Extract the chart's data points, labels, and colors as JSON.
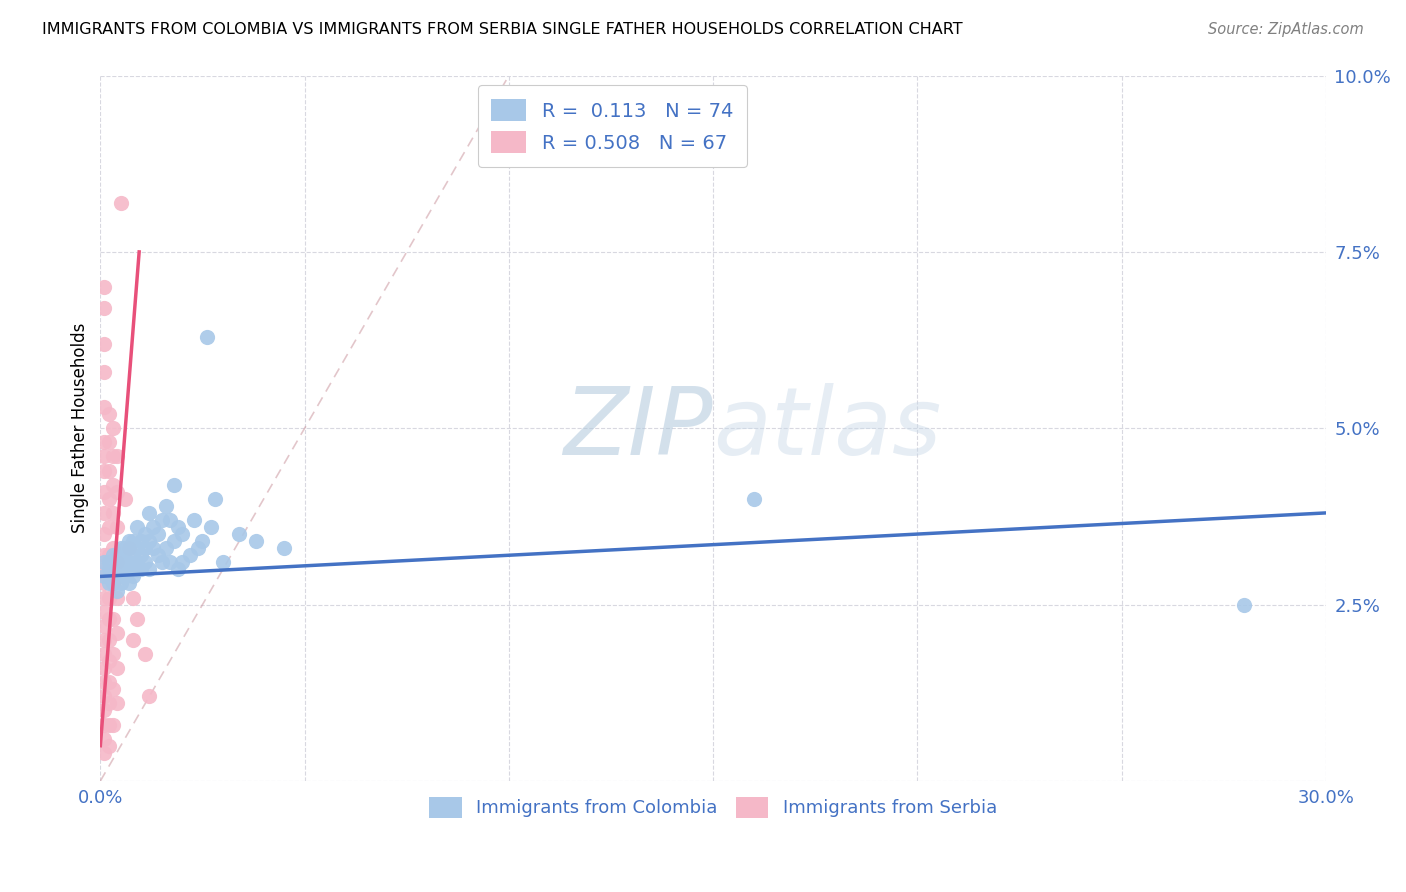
{
  "title": "IMMIGRANTS FROM COLOMBIA VS IMMIGRANTS FROM SERBIA SINGLE FATHER HOUSEHOLDS CORRELATION CHART",
  "source": "Source: ZipAtlas.com",
  "ylabel": "Single Father Households",
  "x_min": 0.0,
  "x_max": 0.3,
  "y_min": 0.0,
  "y_max": 0.1,
  "x_tick_positions": [
    0.0,
    0.05,
    0.1,
    0.15,
    0.2,
    0.25,
    0.3
  ],
  "x_tick_labels": [
    "0.0%",
    "",
    "",
    "",
    "",
    "",
    "30.0%"
  ],
  "y_tick_positions": [
    0.0,
    0.025,
    0.05,
    0.075,
    0.1
  ],
  "y_tick_labels": [
    "",
    "2.5%",
    "5.0%",
    "7.5%",
    "10.0%"
  ],
  "colombia_R": 0.113,
  "colombia_N": 74,
  "serbia_R": 0.508,
  "serbia_N": 67,
  "colombia_color": "#a8c8e8",
  "serbia_color": "#f5b8c8",
  "colombia_line_color": "#4472c4",
  "serbia_line_color": "#e8507a",
  "diagonal_color": "#d0a0a8",
  "legend_color_blue": "#4472c4",
  "colombia_points": [
    [
      0.001,
      0.031
    ],
    [
      0.001,
      0.029
    ],
    [
      0.002,
      0.031
    ],
    [
      0.002,
      0.028
    ],
    [
      0.002,
      0.03
    ],
    [
      0.003,
      0.03
    ],
    [
      0.003,
      0.032
    ],
    [
      0.003,
      0.028
    ],
    [
      0.003,
      0.031
    ],
    [
      0.004,
      0.03
    ],
    [
      0.004,
      0.029
    ],
    [
      0.004,
      0.032
    ],
    [
      0.004,
      0.027
    ],
    [
      0.005,
      0.031
    ],
    [
      0.005,
      0.028
    ],
    [
      0.005,
      0.033
    ],
    [
      0.005,
      0.03
    ],
    [
      0.005,
      0.029
    ],
    [
      0.005,
      0.032
    ],
    [
      0.006,
      0.031
    ],
    [
      0.006,
      0.033
    ],
    [
      0.006,
      0.029
    ],
    [
      0.006,
      0.03
    ],
    [
      0.007,
      0.033
    ],
    [
      0.007,
      0.031
    ],
    [
      0.007,
      0.034
    ],
    [
      0.007,
      0.028
    ],
    [
      0.007,
      0.03
    ],
    [
      0.008,
      0.032
    ],
    [
      0.008,
      0.03
    ],
    [
      0.008,
      0.034
    ],
    [
      0.008,
      0.029
    ],
    [
      0.009,
      0.033
    ],
    [
      0.009,
      0.031
    ],
    [
      0.009,
      0.036
    ],
    [
      0.009,
      0.03
    ],
    [
      0.01,
      0.032
    ],
    [
      0.01,
      0.034
    ],
    [
      0.01,
      0.03
    ],
    [
      0.011,
      0.035
    ],
    [
      0.011,
      0.033
    ],
    [
      0.011,
      0.031
    ],
    [
      0.012,
      0.038
    ],
    [
      0.012,
      0.034
    ],
    [
      0.012,
      0.03
    ],
    [
      0.013,
      0.036
    ],
    [
      0.013,
      0.033
    ],
    [
      0.014,
      0.032
    ],
    [
      0.014,
      0.035
    ],
    [
      0.015,
      0.037
    ],
    [
      0.015,
      0.031
    ],
    [
      0.016,
      0.039
    ],
    [
      0.016,
      0.033
    ],
    [
      0.017,
      0.037
    ],
    [
      0.017,
      0.031
    ],
    [
      0.018,
      0.042
    ],
    [
      0.018,
      0.034
    ],
    [
      0.019,
      0.036
    ],
    [
      0.019,
      0.03
    ],
    [
      0.02,
      0.035
    ],
    [
      0.02,
      0.031
    ],
    [
      0.022,
      0.032
    ],
    [
      0.023,
      0.037
    ],
    [
      0.024,
      0.033
    ],
    [
      0.025,
      0.034
    ],
    [
      0.026,
      0.063
    ],
    [
      0.027,
      0.036
    ],
    [
      0.028,
      0.04
    ],
    [
      0.03,
      0.031
    ],
    [
      0.034,
      0.035
    ],
    [
      0.038,
      0.034
    ],
    [
      0.045,
      0.033
    ],
    [
      0.16,
      0.04
    ],
    [
      0.28,
      0.025
    ]
  ],
  "serbia_points": [
    [
      0.001,
      0.07
    ],
    [
      0.001,
      0.067
    ],
    [
      0.001,
      0.062
    ],
    [
      0.001,
      0.058
    ],
    [
      0.001,
      0.053
    ],
    [
      0.001,
      0.048
    ],
    [
      0.001,
      0.046
    ],
    [
      0.001,
      0.044
    ],
    [
      0.001,
      0.041
    ],
    [
      0.001,
      0.038
    ],
    [
      0.001,
      0.035
    ],
    [
      0.001,
      0.032
    ],
    [
      0.001,
      0.03
    ],
    [
      0.001,
      0.028
    ],
    [
      0.001,
      0.026
    ],
    [
      0.001,
      0.024
    ],
    [
      0.001,
      0.022
    ],
    [
      0.001,
      0.02
    ],
    [
      0.001,
      0.018
    ],
    [
      0.001,
      0.016
    ],
    [
      0.001,
      0.014
    ],
    [
      0.001,
      0.012
    ],
    [
      0.001,
      0.01
    ],
    [
      0.001,
      0.008
    ],
    [
      0.001,
      0.006
    ],
    [
      0.001,
      0.004
    ],
    [
      0.002,
      0.052
    ],
    [
      0.002,
      0.048
    ],
    [
      0.002,
      0.044
    ],
    [
      0.002,
      0.04
    ],
    [
      0.002,
      0.036
    ],
    [
      0.002,
      0.032
    ],
    [
      0.002,
      0.029
    ],
    [
      0.002,
      0.026
    ],
    [
      0.002,
      0.023
    ],
    [
      0.002,
      0.02
    ],
    [
      0.002,
      0.017
    ],
    [
      0.002,
      0.014
    ],
    [
      0.002,
      0.011
    ],
    [
      0.002,
      0.008
    ],
    [
      0.002,
      0.005
    ],
    [
      0.003,
      0.05
    ],
    [
      0.003,
      0.046
    ],
    [
      0.003,
      0.042
    ],
    [
      0.003,
      0.038
    ],
    [
      0.003,
      0.033
    ],
    [
      0.003,
      0.028
    ],
    [
      0.003,
      0.023
    ],
    [
      0.003,
      0.018
    ],
    [
      0.003,
      0.013
    ],
    [
      0.003,
      0.008
    ],
    [
      0.004,
      0.046
    ],
    [
      0.004,
      0.041
    ],
    [
      0.004,
      0.036
    ],
    [
      0.004,
      0.031
    ],
    [
      0.004,
      0.026
    ],
    [
      0.004,
      0.021
    ],
    [
      0.004,
      0.016
    ],
    [
      0.004,
      0.011
    ],
    [
      0.005,
      0.082
    ],
    [
      0.006,
      0.04
    ],
    [
      0.007,
      0.033
    ],
    [
      0.008,
      0.026
    ],
    [
      0.008,
      0.02
    ],
    [
      0.009,
      0.023
    ],
    [
      0.011,
      0.018
    ],
    [
      0.012,
      0.012
    ]
  ],
  "watermark_zip": "ZIP",
  "watermark_atlas": "atlas",
  "figsize": [
    14.06,
    8.92
  ]
}
